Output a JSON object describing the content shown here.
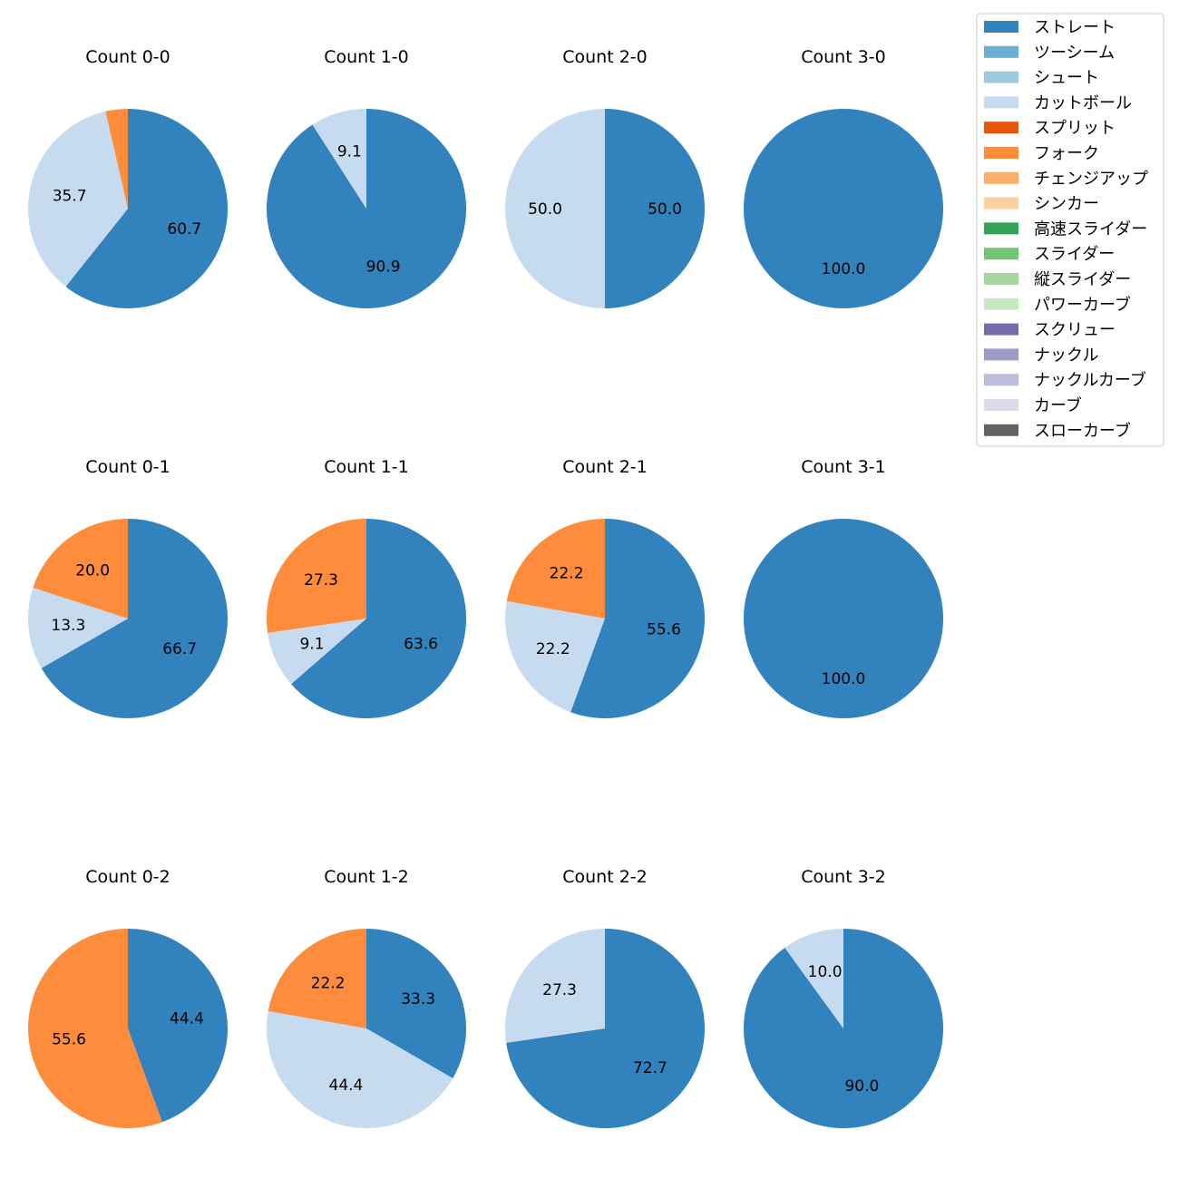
{
  "legend": {
    "entries": [
      {
        "label": "ストレート",
        "color": "#3182bd"
      },
      {
        "label": "ツーシーム",
        "color": "#6baed6"
      },
      {
        "label": "シュート",
        "color": "#9ecae1"
      },
      {
        "label": "カットボール",
        "color": "#c6dbef"
      },
      {
        "label": "スプリット",
        "color": "#e6550d"
      },
      {
        "label": "フォーク",
        "color": "#fd8d3c"
      },
      {
        "label": "チェンジアップ",
        "color": "#fdae6b"
      },
      {
        "label": "シンカー",
        "color": "#fdd0a2"
      },
      {
        "label": "高速スライダー",
        "color": "#31a354"
      },
      {
        "label": "スライダー",
        "color": "#74c476"
      },
      {
        "label": "縦スライダー",
        "color": "#a1d99b"
      },
      {
        "label": "パワーカーブ",
        "color": "#c7e9c0"
      },
      {
        "label": "スクリュー",
        "color": "#756bb1"
      },
      {
        "label": "ナックル",
        "color": "#9e9ac8"
      },
      {
        "label": "ナックルカーブ",
        "color": "#bcbddc"
      },
      {
        "label": "カーブ",
        "color": "#dadaeb"
      },
      {
        "label": "スローカーブ",
        "color": "#636363"
      }
    ]
  },
  "chart_data": [
    {
      "type": "pie",
      "title": "Count 0-0",
      "slices": [
        {
          "label": "ストレート",
          "value": 60.7,
          "color": "#3182bd"
        },
        {
          "label": "カットボール",
          "value": 35.7,
          "color": "#c6dbef"
        },
        {
          "label": "フォーク",
          "value": 3.6,
          "color": "#fd8d3c",
          "show_label": false
        }
      ]
    },
    {
      "type": "pie",
      "title": "Count 1-0",
      "slices": [
        {
          "label": "ストレート",
          "value": 90.9,
          "color": "#3182bd"
        },
        {
          "label": "カットボール",
          "value": 9.1,
          "color": "#c6dbef"
        }
      ]
    },
    {
      "type": "pie",
      "title": "Count 2-0",
      "slices": [
        {
          "label": "ストレート",
          "value": 50.0,
          "color": "#3182bd"
        },
        {
          "label": "カットボール",
          "value": 50.0,
          "color": "#c6dbef"
        }
      ]
    },
    {
      "type": "pie",
      "title": "Count 3-0",
      "slices": [
        {
          "label": "ストレート",
          "value": 100.0,
          "color": "#3182bd"
        }
      ]
    },
    {
      "type": "pie",
      "title": "Count 0-1",
      "slices": [
        {
          "label": "ストレート",
          "value": 66.7,
          "color": "#3182bd"
        },
        {
          "label": "カットボール",
          "value": 13.3,
          "color": "#c6dbef"
        },
        {
          "label": "フォーク",
          "value": 20.0,
          "color": "#fd8d3c"
        }
      ]
    },
    {
      "type": "pie",
      "title": "Count 1-1",
      "slices": [
        {
          "label": "ストレート",
          "value": 63.6,
          "color": "#3182bd"
        },
        {
          "label": "カットボール",
          "value": 9.1,
          "color": "#c6dbef"
        },
        {
          "label": "フォーク",
          "value": 27.3,
          "color": "#fd8d3c"
        }
      ]
    },
    {
      "type": "pie",
      "title": "Count 2-1",
      "slices": [
        {
          "label": "ストレート",
          "value": 55.6,
          "color": "#3182bd"
        },
        {
          "label": "カットボール",
          "value": 22.2,
          "color": "#c6dbef"
        },
        {
          "label": "フォーク",
          "value": 22.2,
          "color": "#fd8d3c"
        }
      ]
    },
    {
      "type": "pie",
      "title": "Count 3-1",
      "slices": [
        {
          "label": "ストレート",
          "value": 100.0,
          "color": "#3182bd"
        }
      ]
    },
    {
      "type": "pie",
      "title": "Count 0-2",
      "slices": [
        {
          "label": "ストレート",
          "value": 44.4,
          "color": "#3182bd"
        },
        {
          "label": "フォーク",
          "value": 55.6,
          "color": "#fd8d3c"
        }
      ]
    },
    {
      "type": "pie",
      "title": "Count 1-2",
      "slices": [
        {
          "label": "ストレート",
          "value": 33.3,
          "color": "#3182bd"
        },
        {
          "label": "カットボール",
          "value": 44.4,
          "color": "#c6dbef"
        },
        {
          "label": "フォーク",
          "value": 22.2,
          "color": "#fd8d3c"
        }
      ]
    },
    {
      "type": "pie",
      "title": "Count 2-2",
      "slices": [
        {
          "label": "ストレート",
          "value": 72.7,
          "color": "#3182bd"
        },
        {
          "label": "カットボール",
          "value": 27.3,
          "color": "#c6dbef"
        }
      ]
    },
    {
      "type": "pie",
      "title": "Count 3-2",
      "slices": [
        {
          "label": "ストレート",
          "value": 90.0,
          "color": "#3182bd"
        },
        {
          "label": "カットボール",
          "value": 10.0,
          "color": "#c6dbef"
        }
      ]
    }
  ]
}
